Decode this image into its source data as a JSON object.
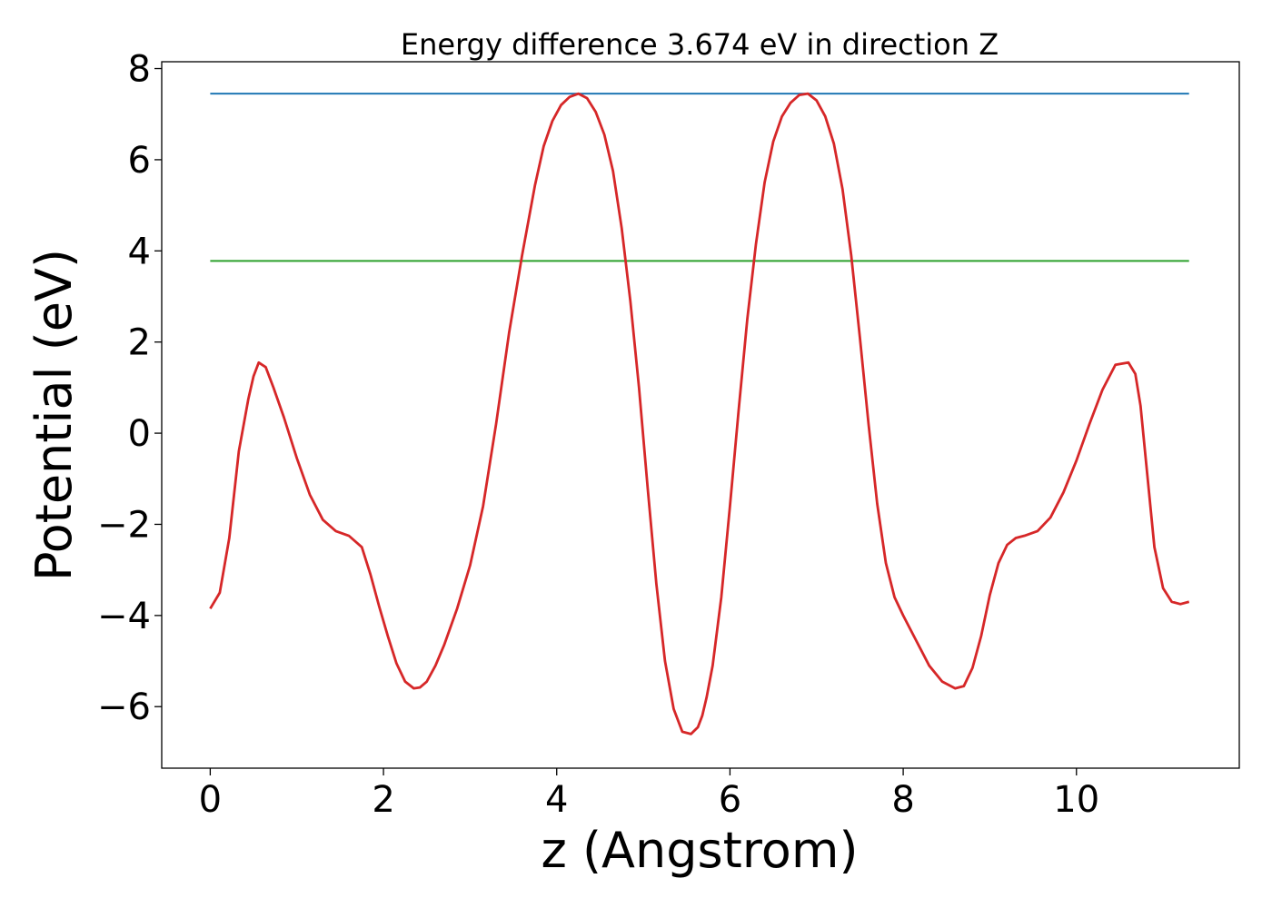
{
  "chart_data": {
    "type": "line",
    "title": "Energy difference 3.674 eV in direction Z",
    "xlabel": "z (Angstrom)",
    "ylabel": "Potential (eV)",
    "xlim": [
      -0.56,
      11.88
    ],
    "ylim": [
      -7.35,
      8.15
    ],
    "xticks": [
      0,
      2,
      4,
      6,
      8,
      10
    ],
    "xtick_labels": [
      "0",
      "2",
      "4",
      "6",
      "8",
      "10"
    ],
    "yticks": [
      -6,
      -4,
      -2,
      0,
      2,
      4,
      6,
      8
    ],
    "ytick_labels": [
      "−6",
      "−4",
      "−2",
      "0",
      "2",
      "4",
      "6",
      "8"
    ],
    "grid": false,
    "series": [
      {
        "color": "#d62728",
        "x": [
          0,
          0.11,
          0.22,
          0.33,
          0.44,
          0.5,
          0.56,
          0.64,
          0.73,
          0.85,
          1.0,
          1.15,
          1.3,
          1.45,
          1.6,
          1.75,
          1.85,
          1.95,
          2.05,
          2.15,
          2.25,
          2.35,
          2.42,
          2.5,
          2.6,
          2.7,
          2.85,
          3.0,
          3.15,
          3.3,
          3.45,
          3.6,
          3.75,
          3.85,
          3.95,
          4.05,
          4.15,
          4.25,
          4.35,
          4.45,
          4.55,
          4.65,
          4.75,
          4.85,
          4.95,
          5.05,
          5.15,
          5.25,
          5.35,
          5.45,
          5.55,
          5.63,
          5.68,
          5.73,
          5.8,
          5.9,
          6.0,
          6.1,
          6.2,
          6.3,
          6.4,
          6.5,
          6.6,
          6.7,
          6.8,
          6.9,
          7.0,
          7.1,
          7.2,
          7.3,
          7.4,
          7.5,
          7.6,
          7.7,
          7.8,
          7.9,
          8.0,
          8.15,
          8.3,
          8.45,
          8.6,
          8.7,
          8.8,
          8.9,
          9.0,
          9.1,
          9.2,
          9.3,
          9.4,
          9.55,
          9.7,
          9.85,
          10.0,
          10.15,
          10.3,
          10.45,
          10.6,
          10.68,
          10.74,
          10.82,
          10.9,
          11.0,
          11.1,
          11.2,
          11.3
        ],
        "y": [
          -3.85,
          -3.5,
          -2.3,
          -0.4,
          0.75,
          1.25,
          1.55,
          1.45,
          1.0,
          0.35,
          -0.55,
          -1.35,
          -1.9,
          -2.15,
          -2.25,
          -2.5,
          -3.1,
          -3.8,
          -4.45,
          -5.05,
          -5.45,
          -5.6,
          -5.58,
          -5.45,
          -5.1,
          -4.65,
          -3.85,
          -2.9,
          -1.6,
          0.2,
          2.2,
          3.9,
          5.45,
          6.3,
          6.85,
          7.2,
          7.38,
          7.45,
          7.35,
          7.05,
          6.55,
          5.75,
          4.5,
          2.9,
          1.0,
          -1.2,
          -3.3,
          -5.0,
          -6.05,
          -6.55,
          -6.6,
          -6.45,
          -6.2,
          -5.8,
          -5.1,
          -3.6,
          -1.6,
          0.5,
          2.5,
          4.15,
          5.5,
          6.4,
          6.95,
          7.25,
          7.42,
          7.45,
          7.3,
          6.95,
          6.35,
          5.35,
          3.9,
          2.1,
          0.2,
          -1.55,
          -2.85,
          -3.6,
          -4.0,
          -4.55,
          -5.1,
          -5.45,
          -5.6,
          -5.55,
          -5.15,
          -4.45,
          -3.55,
          -2.85,
          -2.45,
          -2.3,
          -2.25,
          -2.15,
          -1.85,
          -1.3,
          -0.6,
          0.2,
          0.95,
          1.5,
          1.55,
          1.3,
          0.6,
          -0.95,
          -2.5,
          -3.4,
          -3.7,
          -3.75,
          -3.7
        ]
      },
      {
        "color": "#1f77b4",
        "x": [
          0,
          11.3
        ],
        "y": [
          7.45,
          7.45
        ]
      },
      {
        "color": "#2ca02c",
        "x": [
          0,
          11.3
        ],
        "y": [
          3.78,
          3.78
        ]
      }
    ]
  }
}
